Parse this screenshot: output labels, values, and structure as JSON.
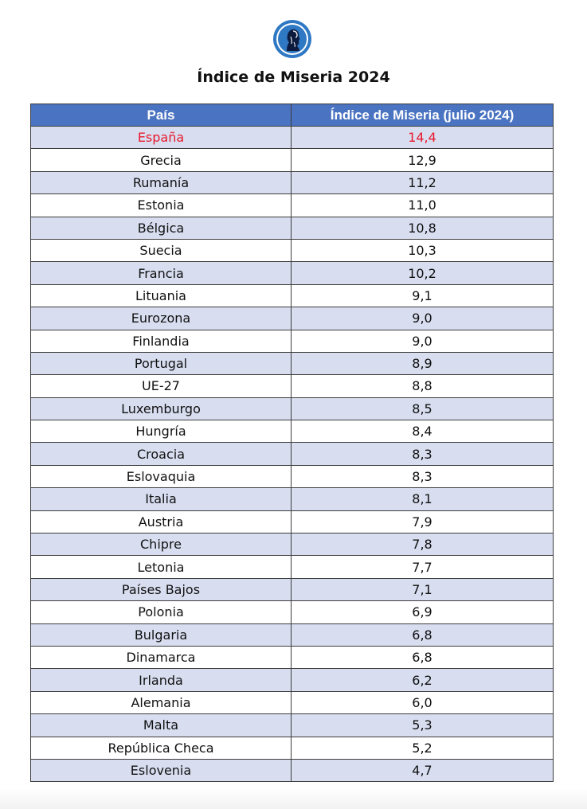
{
  "logo": {
    "icon": "bust-profile-logo-icon",
    "color": "#2f78c4"
  },
  "title": "Índice de Miseria 2024",
  "table": {
    "headers": [
      "País",
      "Índice de Miseria (julio 2024)"
    ],
    "header_color": "#4a73c1",
    "stripe_color": "#d8def0",
    "highlight_color": "#e8192c",
    "rows": [
      {
        "country": "España",
        "value": "14,4",
        "highlight": true
      },
      {
        "country": "Grecia",
        "value": "12,9"
      },
      {
        "country": "Rumanía",
        "value": "11,2"
      },
      {
        "country": "Estonia",
        "value": "11,0"
      },
      {
        "country": "Bélgica",
        "value": "10,8"
      },
      {
        "country": "Suecia",
        "value": "10,3"
      },
      {
        "country": "Francia",
        "value": "10,2"
      },
      {
        "country": "Lituania",
        "value": "9,1"
      },
      {
        "country": "Eurozona",
        "value": "9,0"
      },
      {
        "country": "Finlandia",
        "value": "9,0"
      },
      {
        "country": "Portugal",
        "value": "8,9"
      },
      {
        "country": "UE-27",
        "value": "8,8"
      },
      {
        "country": "Luxemburgo",
        "value": "8,5"
      },
      {
        "country": "Hungría",
        "value": "8,4"
      },
      {
        "country": "Croacia",
        "value": "8,3"
      },
      {
        "country": "Eslovaquia",
        "value": "8,3"
      },
      {
        "country": "Italia",
        "value": "8,1"
      },
      {
        "country": "Austria",
        "value": "7,9"
      },
      {
        "country": "Chipre",
        "value": "7,8"
      },
      {
        "country": "Letonia",
        "value": "7,7"
      },
      {
        "country": "Países Bajos",
        "value": "7,1"
      },
      {
        "country": "Polonia",
        "value": "6,9"
      },
      {
        "country": "Bulgaria",
        "value": "6,8"
      },
      {
        "country": "Dinamarca",
        "value": "6,8"
      },
      {
        "country": "Irlanda",
        "value": "6,2"
      },
      {
        "country": "Alemania",
        "value": "6,0"
      },
      {
        "country": "Malta",
        "value": "5,3"
      },
      {
        "country": "República Checa",
        "value": "5,2"
      },
      {
        "country": "Eslovenia",
        "value": "4,7"
      }
    ]
  }
}
